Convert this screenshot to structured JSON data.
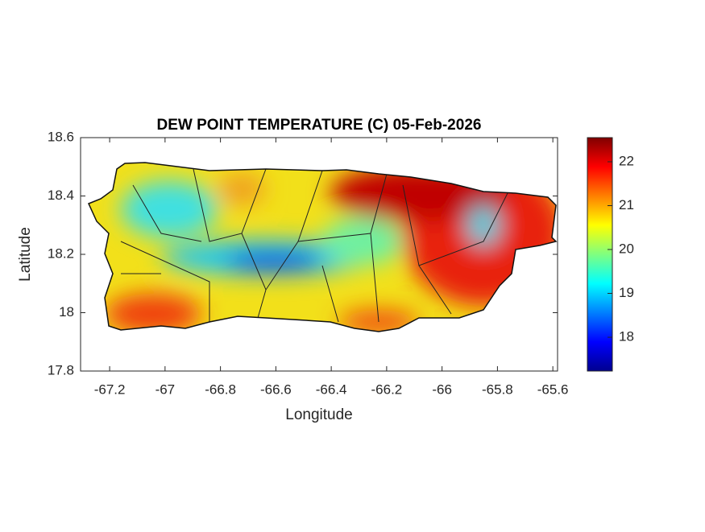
{
  "chart_data": {
    "type": "heatmap-map",
    "title": "DEW POINT TEMPERATURE (C) 05-Feb-2026",
    "x_label": "Longitude",
    "y_label": "Latitude",
    "xlim": [
      -67.305,
      -65.583
    ],
    "xticks": [
      -67.2,
      -67,
      -66.8,
      -66.6,
      -66.4,
      -66.2,
      -66,
      -65.8,
      -65.6
    ],
    "ylim": [
      17.8,
      18.6
    ],
    "yticks": [
      17.8,
      18,
      18.2,
      18.4,
      18.6
    ],
    "colorbar": {
      "colormap": "jet",
      "clim": [
        17.23,
        22.55
      ],
      "ticks": [
        18,
        19,
        20,
        21,
        22
      ]
    }
  }
}
